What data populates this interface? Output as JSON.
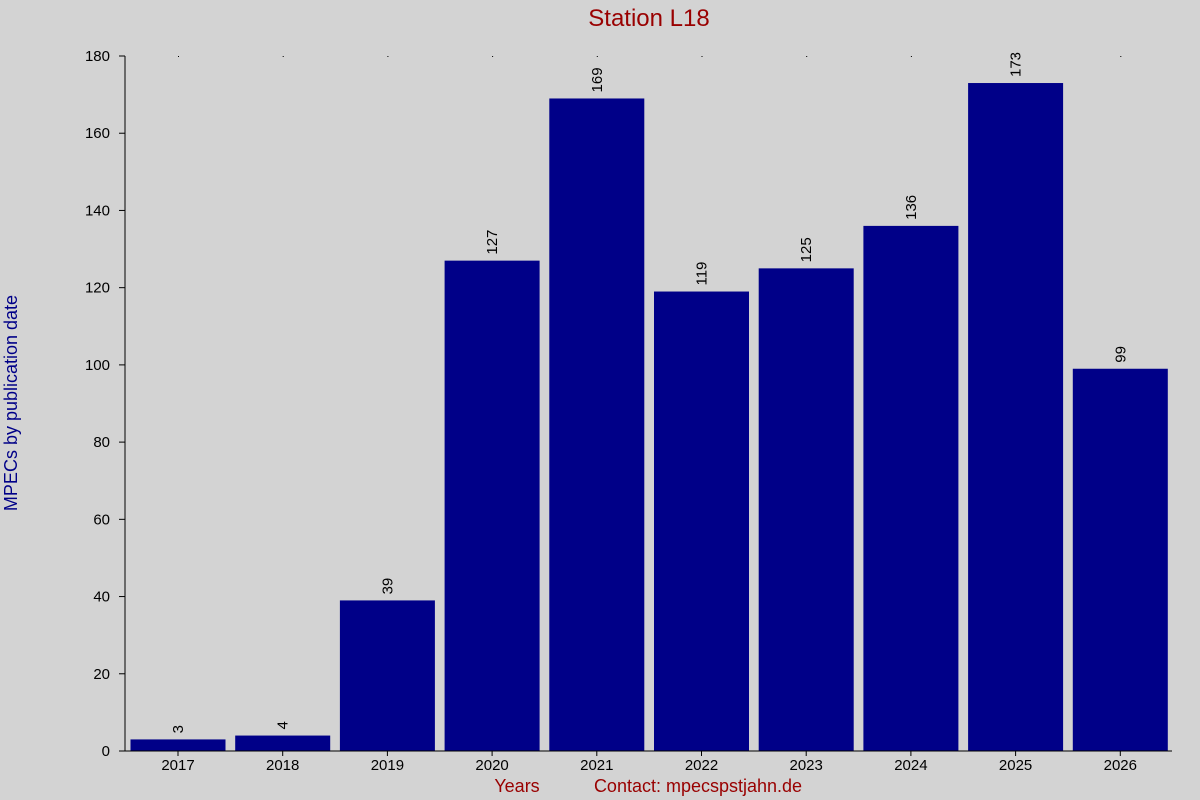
{
  "chart_data": {
    "type": "bar",
    "title": "Station L18",
    "xlabel": "Years",
    "ylabel": "MPECs by publication date",
    "contact": "Contact: mpecspstjahn.de",
    "categories": [
      "2017",
      "2018",
      "2019",
      "2020",
      "2021",
      "2022",
      "2023",
      "2024",
      "2025",
      "2026"
    ],
    "values": [
      3,
      4,
      39,
      127,
      169,
      119,
      125,
      136,
      173,
      99
    ],
    "ylim": [
      0,
      180
    ],
    "yticks": [
      0,
      20,
      40,
      60,
      80,
      100,
      120,
      140,
      160,
      180
    ],
    "grid": false,
    "bar_color": "#000088",
    "title_color": "#990000",
    "ylabel_color": "#000088",
    "background": "#d3d3d3"
  }
}
